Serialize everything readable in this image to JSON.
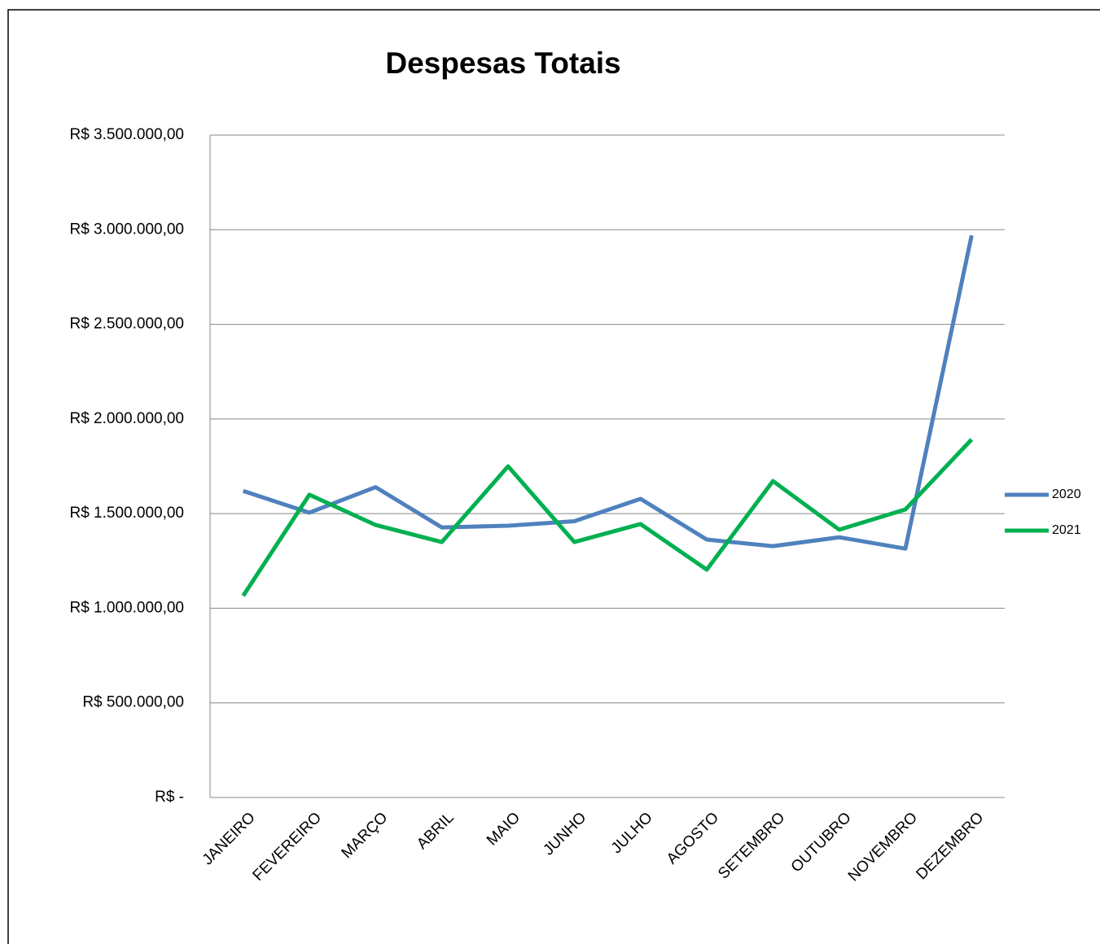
{
  "chart_data": {
    "type": "line",
    "title": "Despesas Totais",
    "categories": [
      "JANEIRO",
      "FEVEREIRO",
      "MARÇO",
      "ABRIL",
      "MAIO",
      "JUNHO",
      "JULHO",
      "AGOSTO",
      "SETEMBRO",
      "OUTUBRO",
      "NOVEMBRO",
      "DEZEMBRO"
    ],
    "series": [
      {
        "name": "2020",
        "color": "#4f81bd",
        "values": [
          1620000,
          1505000,
          1640000,
          1427000,
          1436000,
          1460000,
          1578000,
          1363000,
          1328000,
          1375000,
          1315000,
          2970000
        ]
      },
      {
        "name": "2021",
        "color": "#00b050",
        "values": [
          1066000,
          1600000,
          1440000,
          1350000,
          1750000,
          1350000,
          1445000,
          1204000,
          1672000,
          1415000,
          1522000,
          1892000
        ]
      }
    ],
    "ylim": [
      0,
      3500000
    ],
    "yticks": [
      {
        "value": 0,
        "label": "R$ -"
      },
      {
        "value": 500000,
        "label": "R$ 500.000,00"
      },
      {
        "value": 1000000,
        "label": "R$ 1.000.000,00"
      },
      {
        "value": 1500000,
        "label": "R$ 1.500.000,00"
      },
      {
        "value": 2000000,
        "label": "R$ 2.000.000,00"
      },
      {
        "value": 2500000,
        "label": "R$ 2.500.000,00"
      },
      {
        "value": 3000000,
        "label": "R$ 3.000.000,00"
      },
      {
        "value": 3500000,
        "label": "R$ 3.500.000,00"
      }
    ],
    "grid": true,
    "legend": "right"
  }
}
